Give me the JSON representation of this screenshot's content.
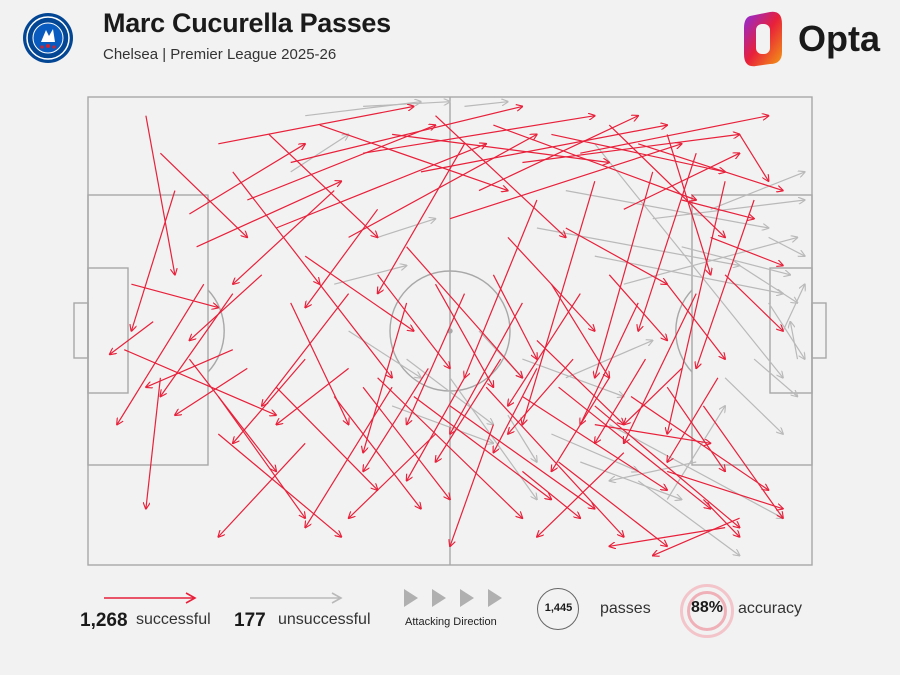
{
  "header": {
    "title": "Marc Cucurella Passes",
    "subtitle": "Chelsea | Premier League 2025-26",
    "brand": "Opta"
  },
  "colors": {
    "successful": "#e8203a",
    "unsuccessful": "#b9b9b9",
    "pitch_lines": "#a8a8a8",
    "background": "#f2f2f2"
  },
  "icons": {
    "crest": "chelsea-crest-icon",
    "brand_logo": "opta-logo-icon",
    "direction": "play-triangle-icon"
  },
  "legend": {
    "successful_count": "1,268",
    "successful_label": "successful",
    "unsuccessful_count": "177",
    "unsuccessful_label": "unsuccessful",
    "direction_label": "Attacking Direction",
    "passes_total": "1,445",
    "passes_label": "passes",
    "accuracy_value": "88%",
    "accuracy_label": "accuracy"
  },
  "chart_data": {
    "type": "scatter",
    "title": "Marc Cucurella Passes",
    "subtitle": "Chelsea | Premier League 2025-26",
    "pitch_length": 100,
    "pitch_width": 100,
    "attacking_direction": "left-to-right",
    "totals": {
      "passes": 1445,
      "successful": 1268,
      "unsuccessful": 177,
      "accuracy_pct": 88
    },
    "series": [
      {
        "name": "successful",
        "color": "#e8203a",
        "passes": [
          [
            8,
            96,
            12,
            62
          ],
          [
            10,
            88,
            22,
            70
          ],
          [
            12,
            80,
            6,
            50
          ],
          [
            14,
            75,
            30,
            90
          ],
          [
            6,
            60,
            18,
            55
          ],
          [
            9,
            52,
            3,
            45
          ],
          [
            15,
            68,
            35,
            82
          ],
          [
            18,
            90,
            45,
            98
          ],
          [
            20,
            84,
            32,
            60
          ],
          [
            22,
            78,
            48,
            94
          ],
          [
            25,
            92,
            40,
            70
          ],
          [
            26,
            72,
            55,
            90
          ],
          [
            28,
            86,
            60,
            98
          ],
          [
            30,
            66,
            45,
            50
          ],
          [
            32,
            94,
            58,
            80
          ],
          [
            34,
            80,
            20,
            60
          ],
          [
            36,
            70,
            62,
            92
          ],
          [
            38,
            88,
            70,
            96
          ],
          [
            40,
            76,
            30,
            55
          ],
          [
            42,
            92,
            72,
            86
          ],
          [
            44,
            68,
            60,
            40
          ],
          [
            46,
            84,
            80,
            94
          ],
          [
            48,
            96,
            66,
            70
          ],
          [
            50,
            74,
            82,
            90
          ],
          [
            52,
            90,
            40,
            58
          ],
          [
            54,
            80,
            76,
            96
          ],
          [
            56,
            94,
            84,
            78
          ],
          [
            58,
            70,
            70,
            50
          ],
          [
            60,
            86,
            90,
            92
          ],
          [
            62,
            78,
            52,
            40
          ],
          [
            64,
            92,
            88,
            84
          ],
          [
            66,
            72,
            80,
            60
          ],
          [
            68,
            88,
            94,
            96
          ],
          [
            70,
            82,
            60,
            30
          ],
          [
            72,
            94,
            88,
            70
          ],
          [
            74,
            76,
            90,
            88
          ],
          [
            76,
            90,
            96,
            80
          ],
          [
            78,
            84,
            70,
            40
          ],
          [
            80,
            92,
            86,
            62
          ],
          [
            82,
            78,
            92,
            74
          ],
          [
            84,
            88,
            76,
            50
          ],
          [
            86,
            70,
            96,
            64
          ],
          [
            88,
            82,
            80,
            28
          ],
          [
            90,
            92,
            94,
            82
          ],
          [
            92,
            78,
            84,
            42
          ],
          [
            16,
            60,
            4,
            30
          ],
          [
            20,
            58,
            10,
            36
          ],
          [
            24,
            62,
            14,
            48
          ],
          [
            28,
            56,
            36,
            30
          ],
          [
            32,
            60,
            42,
            40
          ],
          [
            36,
            58,
            24,
            34
          ],
          [
            40,
            62,
            50,
            42
          ],
          [
            44,
            56,
            38,
            24
          ],
          [
            48,
            60,
            56,
            38
          ],
          [
            52,
            58,
            44,
            30
          ],
          [
            56,
            62,
            62,
            44
          ],
          [
            60,
            56,
            50,
            28
          ],
          [
            64,
            60,
            72,
            40
          ],
          [
            68,
            58,
            58,
            34
          ],
          [
            72,
            62,
            80,
            48
          ],
          [
            76,
            56,
            68,
            30
          ],
          [
            80,
            60,
            88,
            44
          ],
          [
            84,
            58,
            74,
            26
          ],
          [
            88,
            62,
            96,
            50
          ],
          [
            40,
            40,
            60,
            10
          ],
          [
            42,
            38,
            30,
            8
          ],
          [
            45,
            36,
            64,
            14
          ],
          [
            47,
            42,
            38,
            20
          ],
          [
            50,
            34,
            70,
            12
          ],
          [
            52,
            40,
            44,
            18
          ],
          [
            55,
            38,
            74,
            6
          ],
          [
            57,
            44,
            48,
            22
          ],
          [
            60,
            36,
            80,
            16
          ],
          [
            62,
            42,
            56,
            24
          ],
          [
            65,
            38,
            86,
            12
          ],
          [
            67,
            44,
            58,
            28
          ],
          [
            70,
            34,
            90,
            8
          ],
          [
            72,
            40,
            64,
            20
          ],
          [
            75,
            36,
            94,
            16
          ],
          [
            77,
            44,
            70,
            26
          ],
          [
            80,
            38,
            88,
            20
          ],
          [
            82,
            42,
            74,
            30
          ],
          [
            85,
            34,
            96,
            10
          ],
          [
            87,
            40,
            80,
            22
          ],
          [
            10,
            40,
            8,
            12
          ],
          [
            14,
            44,
            26,
            20
          ],
          [
            18,
            36,
            30,
            10
          ],
          [
            22,
            42,
            12,
            32
          ],
          [
            26,
            38,
            40,
            16
          ],
          [
            30,
            44,
            20,
            26
          ],
          [
            34,
            36,
            46,
            12
          ],
          [
            36,
            42,
            26,
            30
          ],
          [
            38,
            38,
            50,
            14
          ],
          [
            5,
            46,
            26,
            32
          ],
          [
            20,
            46,
            8,
            38
          ],
          [
            18,
            28,
            35,
            6
          ],
          [
            60,
            20,
            68,
            10
          ],
          [
            65,
            22,
            80,
            4
          ],
          [
            80,
            20,
            96,
            12
          ],
          [
            85,
            14,
            90,
            6
          ],
          [
            88,
            8,
            72,
            4
          ],
          [
            90,
            10,
            78,
            2
          ],
          [
            70,
            30,
            86,
            26
          ],
          [
            74,
            24,
            62,
            6
          ],
          [
            56,
            30,
            50,
            4
          ],
          [
            48,
            28,
            36,
            10
          ],
          [
            30,
            26,
            18,
            6
          ],
          [
            62,
            48,
            74,
            30
          ]
        ]
      },
      {
        "name": "unsuccessful",
        "color": "#b9b9b9",
        "passes": [
          [
            62,
            72,
            90,
            64
          ],
          [
            66,
            80,
            94,
            72
          ],
          [
            70,
            66,
            96,
            58
          ],
          [
            74,
            60,
            98,
            70
          ],
          [
            78,
            74,
            99,
            78
          ],
          [
            82,
            68,
            97,
            62
          ],
          [
            86,
            76,
            99,
            84
          ],
          [
            90,
            64,
            98,
            56
          ],
          [
            94,
            70,
            99,
            66
          ],
          [
            70,
            90,
            96,
            40
          ],
          [
            58,
            32,
            62,
            22
          ],
          [
            64,
            28,
            76,
            20
          ],
          [
            68,
            22,
            82,
            14
          ],
          [
            72,
            30,
            96,
            10
          ],
          [
            76,
            18,
            90,
            2
          ],
          [
            80,
            14,
            88,
            34
          ],
          [
            84,
            22,
            72,
            18
          ],
          [
            50,
            40,
            62,
            14
          ],
          [
            44,
            44,
            56,
            30
          ],
          [
            36,
            50,
            46,
            40
          ],
          [
            34,
            60,
            44,
            64
          ],
          [
            40,
            70,
            48,
            74
          ],
          [
            28,
            84,
            36,
            92
          ],
          [
            30,
            96,
            46,
            99
          ],
          [
            38,
            98,
            50,
            99
          ],
          [
            52,
            98,
            58,
            99
          ],
          [
            42,
            34,
            56,
            26
          ],
          [
            60,
            44,
            74,
            36
          ],
          [
            66,
            40,
            78,
            48
          ],
          [
            88,
            40,
            96,
            28
          ],
          [
            92,
            44,
            98,
            36
          ],
          [
            96,
            50,
            99,
            60
          ],
          [
            98,
            44,
            97,
            52
          ],
          [
            94,
            56,
            99,
            44
          ],
          [
            54,
            50,
            60,
            40
          ]
        ]
      }
    ]
  }
}
